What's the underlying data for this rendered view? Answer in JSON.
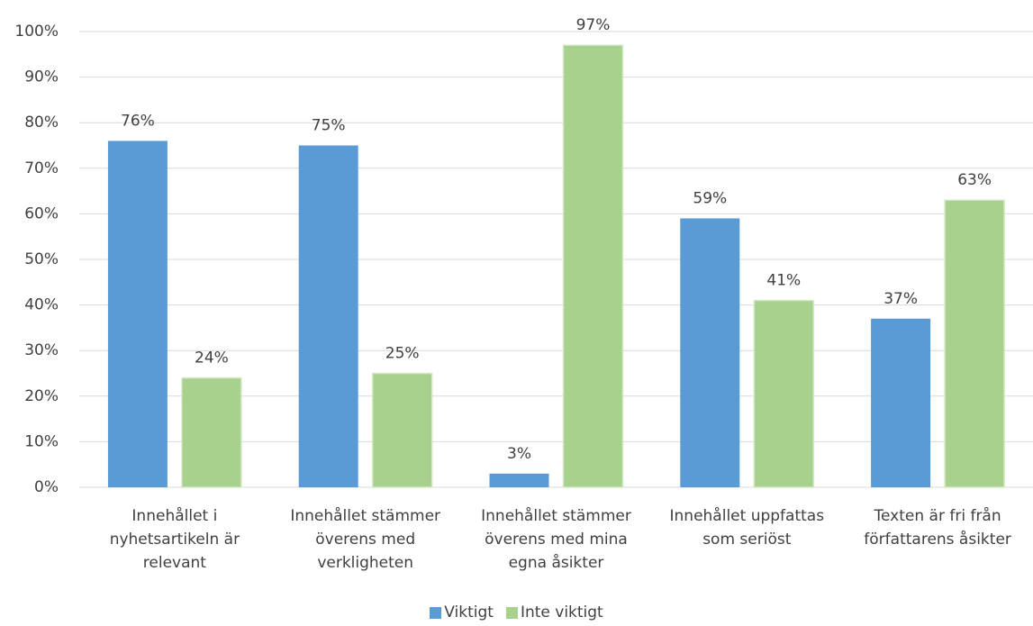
{
  "chart_data": {
    "type": "bar",
    "categories": [
      "Innehållet i nyhetsartikeln är relevant",
      "Innehållet stämmer överens med verkligheten",
      "Innehållet stämmer överens med mina egna åsikter",
      "Innehållet uppfattas som seriöst",
      "Texten är fri från författarens åsikter"
    ],
    "series": [
      {
        "name": "Viktigt",
        "color": "#5b9bd5",
        "values": [
          76,
          75,
          3,
          59,
          37
        ],
        "value_labels": [
          "76%",
          "75%",
          "3%",
          "59%",
          "37%"
        ]
      },
      {
        "name": "Inte viktigt",
        "color": "#a9d18e",
        "values": [
          24,
          25,
          97,
          41,
          63
        ],
        "value_labels": [
          "24%",
          "25%",
          "97%",
          "41%",
          "63%"
        ]
      }
    ],
    "ylim": [
      0,
      100
    ],
    "yticks": [
      {
        "value": 0,
        "label": "0%"
      },
      {
        "value": 10,
        "label": "10%"
      },
      {
        "value": 20,
        "label": "20%"
      },
      {
        "value": 30,
        "label": "30%"
      },
      {
        "value": 40,
        "label": "40%"
      },
      {
        "value": 50,
        "label": "50%"
      },
      {
        "value": 60,
        "label": "60%"
      },
      {
        "value": 70,
        "label": "70%"
      },
      {
        "value": 80,
        "label": "80%"
      },
      {
        "value": 90,
        "label": "90%"
      },
      {
        "value": 100,
        "label": "100%"
      }
    ],
    "grid": true,
    "legend": "bottom"
  }
}
